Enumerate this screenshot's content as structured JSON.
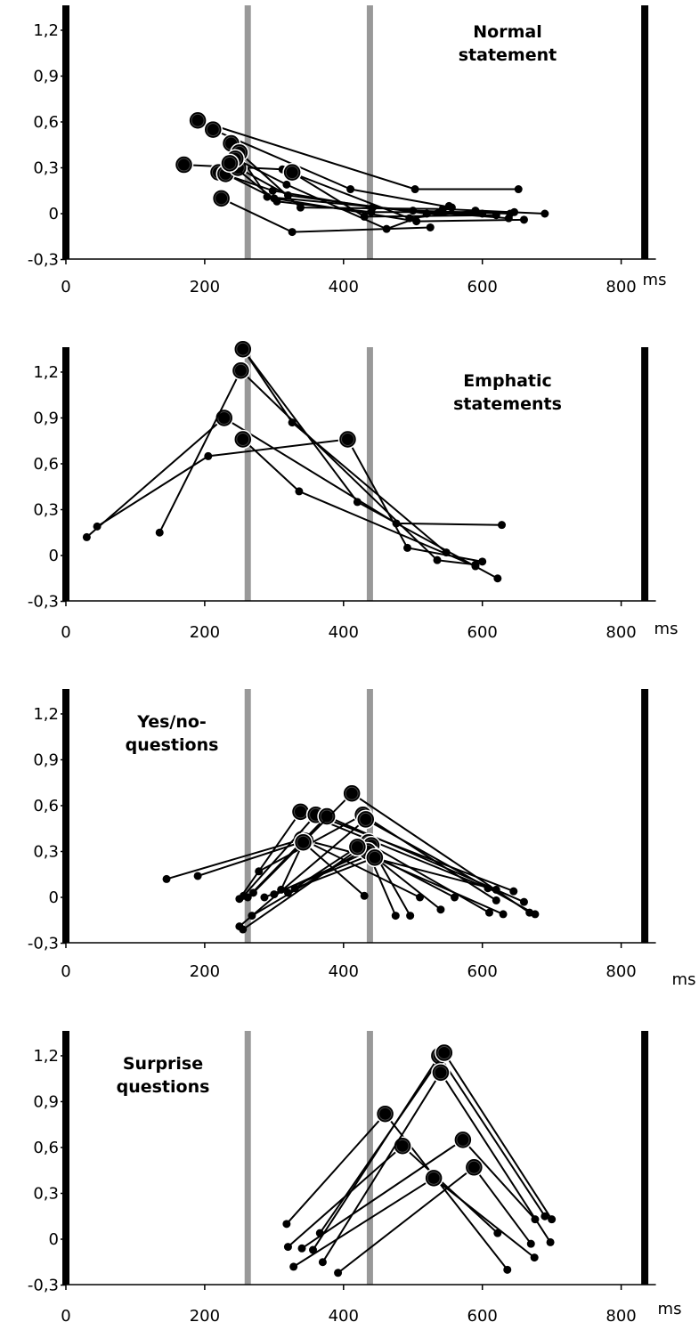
{
  "common": {
    "x_unit": "ms",
    "y_ticks": [
      "-0,3",
      "0",
      "0,3",
      "0,6",
      "0,9",
      "1,2"
    ],
    "x_ticks": [
      "0",
      "200",
      "400",
      "600",
      "800"
    ],
    "colors": {
      "points": "#000000",
      "gray_lines": "#999999",
      "black_lines": "#000000"
    }
  },
  "chart_data": [
    {
      "type": "scatter",
      "title": "Normal statement",
      "xlabel": "ms",
      "ylabel": "",
      "xlim": [
        0,
        850
      ],
      "ylim": [
        -0.3,
        1.4
      ],
      "x_ticks": [
        0,
        200,
        400,
        600,
        800
      ],
      "y_ticks": [
        -0.3,
        0,
        0.3,
        0.6,
        0.9,
        1.2
      ],
      "gray_lines_x": [
        262,
        438
      ],
      "black_lines_x": [
        0,
        834
      ],
      "trajectories": [
        [
          [
            190,
            0.61
          ],
          [
            503,
            0.16
          ],
          [
            652,
            0.16
          ]
        ],
        [
          [
            212,
            0.55
          ],
          [
            410,
            0.16
          ],
          [
            556,
            0.04
          ]
        ],
        [
          [
            170,
            0.32
          ],
          [
            312,
            0.29
          ],
          [
            495,
            -0.03
          ],
          [
            590,
            0.02
          ]
        ],
        [
          [
            238,
            0.46
          ],
          [
            290,
            0.11
          ],
          [
            500,
            0.02
          ],
          [
            640,
            0.0
          ]
        ],
        [
          [
            250,
            0.4
          ],
          [
            338,
            0.04
          ],
          [
            543,
            0.03
          ],
          [
            690,
            0.0
          ]
        ],
        [
          [
            220,
            0.27
          ],
          [
            298,
            0.15
          ],
          [
            442,
            0.04
          ],
          [
            638,
            -0.03
          ]
        ],
        [
          [
            230,
            0.26
          ],
          [
            300,
            0.1
          ],
          [
            505,
            -0.05
          ],
          [
            660,
            -0.04
          ]
        ],
        [
          [
            248,
            0.3
          ],
          [
            320,
            0.12
          ],
          [
            520,
            0.0
          ],
          [
            600,
            0.0
          ]
        ],
        [
          [
            326,
            0.27
          ],
          [
            430,
            -0.02
          ],
          [
            620,
            -0.01
          ]
        ],
        [
          [
            224,
            0.1
          ],
          [
            326,
            -0.12
          ],
          [
            525,
            -0.09
          ]
        ],
        [
          [
            244,
            0.36
          ],
          [
            318,
            0.19
          ],
          [
            462,
            -0.1
          ],
          [
            552,
            0.05
          ]
        ],
        [
          [
            236,
            0.33
          ],
          [
            304,
            0.08
          ],
          [
            440,
            0.01
          ],
          [
            646,
            0.01
          ]
        ]
      ]
    },
    {
      "type": "scatter",
      "title": "Emphatic statements",
      "xlabel": "ms",
      "ylabel": "",
      "xlim": [
        0,
        850
      ],
      "ylim": [
        -0.3,
        1.4
      ],
      "x_ticks": [
        0,
        200,
        400,
        600,
        800
      ],
      "y_ticks": [
        -0.3,
        0,
        0.3,
        0.6,
        0.9,
        1.2
      ],
      "gray_lines_x": [
        262,
        438
      ],
      "black_lines_x": [
        0,
        834
      ],
      "trajectories": [
        [
          [
            30,
            0.12
          ],
          [
            228,
            0.9
          ],
          [
            476,
            0.21
          ],
          [
            628,
            0.2
          ]
        ],
        [
          [
            45,
            0.19
          ],
          [
            205,
            0.65
          ],
          [
            406,
            0.76
          ],
          [
            492,
            0.05
          ],
          [
            600,
            -0.04
          ]
        ],
        [
          [
            135,
            0.15
          ],
          [
            252,
            1.21
          ],
          [
            535,
            -0.03
          ],
          [
            590,
            -0.06
          ]
        ],
        [
          [
            255,
            1.35
          ],
          [
            326,
            0.87
          ],
          [
            548,
            0.02
          ]
        ],
        [
          [
            255,
            1.35
          ],
          [
            420,
            0.35
          ],
          [
            622,
            -0.15
          ]
        ],
        [
          [
            255,
            0.76
          ],
          [
            336,
            0.42
          ],
          [
            590,
            -0.07
          ]
        ]
      ]
    },
    {
      "type": "scatter",
      "title": "Yes/no-questions",
      "xlabel": "ms",
      "ylabel": "",
      "xlim": [
        0,
        850
      ],
      "ylim": [
        -0.3,
        1.4
      ],
      "x_ticks": [
        0,
        200,
        400,
        600,
        800
      ],
      "y_ticks": [
        -0.3,
        0,
        0.3,
        0.6,
        0.9,
        1.2
      ],
      "gray_lines_x": [
        262,
        438
      ],
      "black_lines_x": [
        0,
        834
      ],
      "trajectories": [
        [
          [
            145,
            0.12
          ],
          [
            340,
            0.38
          ],
          [
            620,
            0.05
          ]
        ],
        [
          [
            190,
            0.14
          ],
          [
            345,
            0.37
          ],
          [
            510,
            0.0
          ]
        ],
        [
          [
            250,
            -0.01
          ],
          [
            338,
            0.56
          ],
          [
            608,
            0.06
          ]
        ],
        [
          [
            256,
            0.01
          ],
          [
            360,
            0.54
          ],
          [
            645,
            0.04
          ]
        ],
        [
          [
            262,
            0.0
          ],
          [
            376,
            0.53
          ],
          [
            660,
            -0.03
          ]
        ],
        [
          [
            270,
            0.03
          ],
          [
            412,
            0.68
          ],
          [
            668,
            -0.1
          ]
        ],
        [
          [
            278,
            0.17
          ],
          [
            428,
            0.54
          ],
          [
            620,
            -0.02
          ]
        ],
        [
          [
            250,
            -0.19
          ],
          [
            432,
            0.51
          ],
          [
            676,
            -0.11
          ]
        ],
        [
          [
            255,
            -0.21
          ],
          [
            436,
            0.36
          ],
          [
            496,
            -0.12
          ]
        ],
        [
          [
            268,
            -0.12
          ],
          [
            440,
            0.34
          ],
          [
            610,
            -0.1
          ]
        ],
        [
          [
            286,
            0.0
          ],
          [
            440,
            0.28
          ],
          [
            540,
            -0.08
          ]
        ],
        [
          [
            300,
            0.02
          ],
          [
            435,
            0.3
          ],
          [
            475,
            -0.12
          ]
        ],
        [
          [
            310,
            0.05
          ],
          [
            342,
            0.36
          ],
          [
            430,
            0.01
          ]
        ],
        [
          [
            320,
            0.03
          ],
          [
            420,
            0.33
          ],
          [
            560,
            0.0
          ]
        ],
        [
          [
            330,
            0.06
          ],
          [
            445,
            0.26
          ],
          [
            630,
            -0.11
          ]
        ]
      ]
    },
    {
      "type": "scatter",
      "title": "Surprise questions",
      "xlabel": "ms",
      "ylabel": "",
      "xlim": [
        0,
        850
      ],
      "ylim": [
        -0.3,
        1.4
      ],
      "x_ticks": [
        0,
        200,
        400,
        600,
        800
      ],
      "y_ticks": [
        -0.3,
        0,
        0.3,
        0.6,
        0.9,
        1.2
      ],
      "gray_lines_x": [
        262,
        438
      ],
      "black_lines_x": [
        0,
        834
      ],
      "trajectories": [
        [
          [
            318,
            0.1
          ],
          [
            460,
            0.82
          ],
          [
            636,
            -0.2
          ]
        ],
        [
          [
            320,
            -0.05
          ],
          [
            485,
            0.61
          ],
          [
            622,
            0.04
          ]
        ],
        [
          [
            328,
            -0.18
          ],
          [
            530,
            0.4
          ],
          [
            675,
            -0.12
          ]
        ],
        [
          [
            340,
            -0.06
          ],
          [
            572,
            0.65
          ],
          [
            676,
            0.13
          ]
        ],
        [
          [
            356,
            -0.07
          ],
          [
            538,
            1.2
          ],
          [
            690,
            0.15
          ]
        ],
        [
          [
            366,
            0.04
          ],
          [
            545,
            1.22
          ],
          [
            700,
            0.13
          ]
        ],
        [
          [
            370,
            -0.15
          ],
          [
            540,
            1.09
          ],
          [
            698,
            -0.02
          ]
        ],
        [
          [
            392,
            -0.22
          ],
          [
            588,
            0.47
          ],
          [
            670,
            -0.03
          ]
        ]
      ]
    }
  ]
}
